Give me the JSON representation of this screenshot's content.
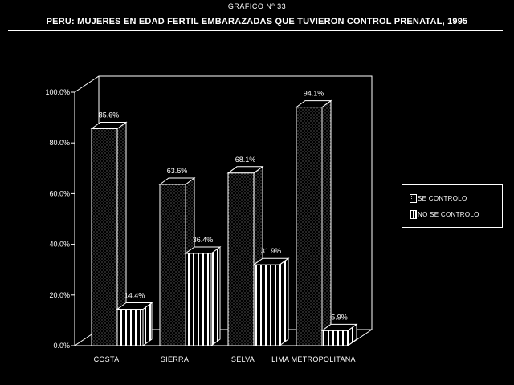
{
  "title": "GRAFICO Nº 33",
  "subtitle": "PERU: MUJERES EN EDAD FERTIL EMBARAZADAS QUE TUVIERON CONTROL PRENATAL, 1995",
  "chart_data": {
    "type": "bar",
    "categories": [
      "COSTA",
      "SIERRA",
      "SELVA",
      "LIMA METROPOLITANA"
    ],
    "series": [
      {
        "name": "SE CONTROLO",
        "values": [
          85.6,
          63.6,
          68.1,
          94.1
        ],
        "labels": [
          "85.6%",
          "63.6%",
          "68.1%",
          "94.1%"
        ]
      },
      {
        "name": "NO SE CONTROLO",
        "values": [
          14.4,
          36.4,
          31.9,
          5.9
        ],
        "labels": [
          "14.4%",
          "36.4%",
          "31.9%",
          "5.9%"
        ]
      }
    ],
    "yticks": [
      "0.0%",
      "20.0%",
      "40.0%",
      "60.0%",
      "80.0%",
      "100.0%"
    ],
    "ylim": [
      0,
      100
    ],
    "grid": false,
    "style": "3d",
    "legend_position": "right"
  },
  "legend": {
    "items": [
      {
        "label": "SE CONTROLO",
        "pattern": "dots"
      },
      {
        "label": "NO SE CONTROLO",
        "pattern": "stripes"
      }
    ]
  },
  "colors": {
    "background": "#000000",
    "foreground": "#ffffff"
  }
}
